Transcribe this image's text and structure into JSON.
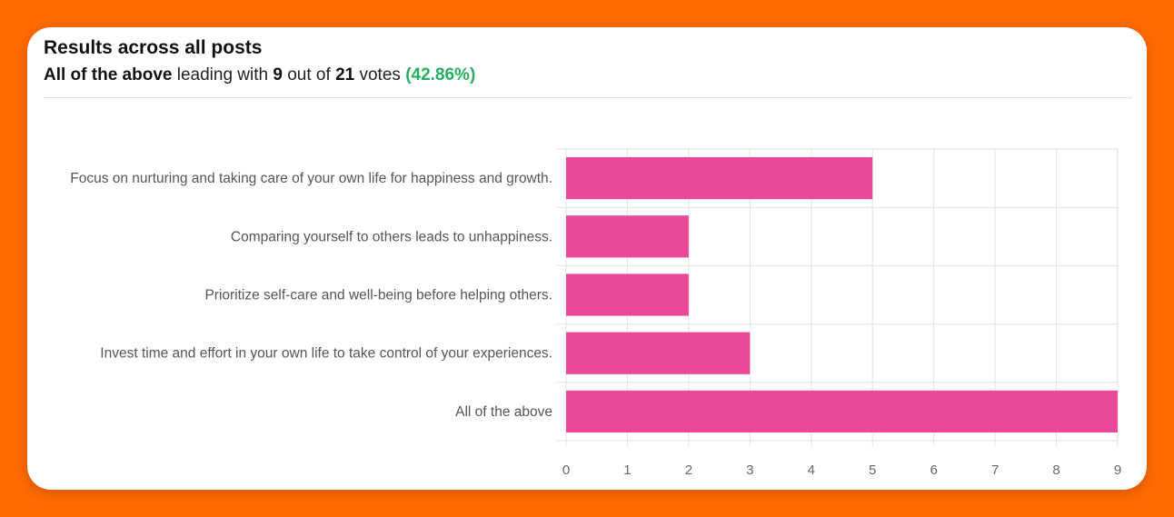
{
  "header": {
    "title": "Results across all posts",
    "leader": "All of the above",
    "text_leading_with": "leading with",
    "leader_votes": "9",
    "text_out_of": "out of",
    "total_votes": "21",
    "text_votes": "votes",
    "percent": "(42.86%)"
  },
  "colors": {
    "bar": "#ec4899",
    "accent_green": "#27ae60",
    "background": "#ff6a00"
  },
  "chart_data": {
    "type": "bar",
    "orientation": "horizontal",
    "categories": [
      "Focus on nurturing and taking care of your own life for happiness and growth.",
      "Comparing yourself to others leads to unhappiness.",
      "Prioritize self-care and well-being before helping others.",
      "Invest time and effort in your own life to take control of your experiences.",
      "All of the above"
    ],
    "values": [
      5,
      2,
      2,
      3,
      9
    ],
    "xlim": [
      0,
      9
    ],
    "xticks": [
      0,
      1,
      2,
      3,
      4,
      5,
      6,
      7,
      8,
      9
    ],
    "grid": true
  }
}
